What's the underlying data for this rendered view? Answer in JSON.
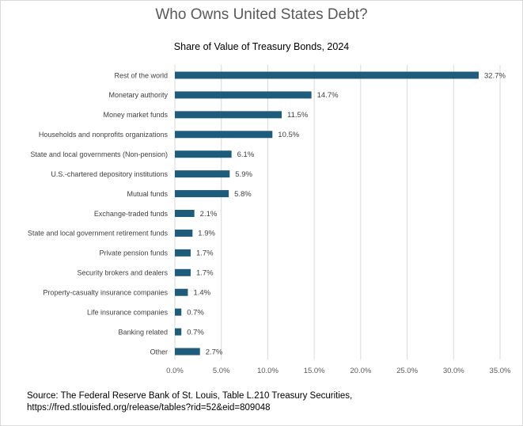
{
  "title": "Who Owns United States Debt?",
  "subtitle": "Share of Value of Treasury Bonds, 2024",
  "source": {
    "line1": "Source: The Federal Reserve Bank of St. Louis, Table L.210 Treasury Securities,",
    "line2": "https://fred.stlouisfed.org/release/tables?rid=52&eid=809048"
  },
  "colors": {
    "bar": "#1f5c7c",
    "grid": "#d9d9d9",
    "axis_text": "#595959",
    "label_text": "#404040"
  },
  "chart_data": {
    "type": "bar",
    "orientation": "horizontal",
    "title": "Who Owns United States Debt?",
    "subtitle": "Share of Value of Treasury Bonds, 2024",
    "categories": [
      "Rest of the world",
      "Monetary authority",
      "Money market funds",
      "Households and nonprofits organizations",
      "State and local governments (Non-pension)",
      "U.S.-chartered depository institutions",
      "Mutual funds",
      "Exchange-traded funds",
      "State and local government retirement funds",
      "Private pension funds",
      "Security brokers and dealers",
      "Property-casualty insurance companies",
      "Life insurance companies",
      "Banking related",
      "Other"
    ],
    "values": [
      32.7,
      14.7,
      11.5,
      10.5,
      6.1,
      5.9,
      5.8,
      2.1,
      1.9,
      1.7,
      1.7,
      1.4,
      0.7,
      0.7,
      2.7
    ],
    "value_labels": [
      "32.7%",
      "14.7%",
      "11.5%",
      "10.5%",
      "6.1%",
      "5.9%",
      "5.8%",
      "2.1%",
      "1.9%",
      "1.7%",
      "1.7%",
      "1.4%",
      "0.7%",
      "0.7%",
      "2.7%"
    ],
    "xlim": [
      0,
      35
    ],
    "xticks": [
      0,
      5,
      10,
      15,
      20,
      25,
      30,
      35
    ],
    "xtick_labels": [
      "0.0%",
      "5.0%",
      "10.0%",
      "15.0%",
      "20.0%",
      "25.0%",
      "30.0%",
      "35.0%"
    ],
    "xlabel": "",
    "ylabel": "",
    "grid": "vertical",
    "legend": "none"
  }
}
